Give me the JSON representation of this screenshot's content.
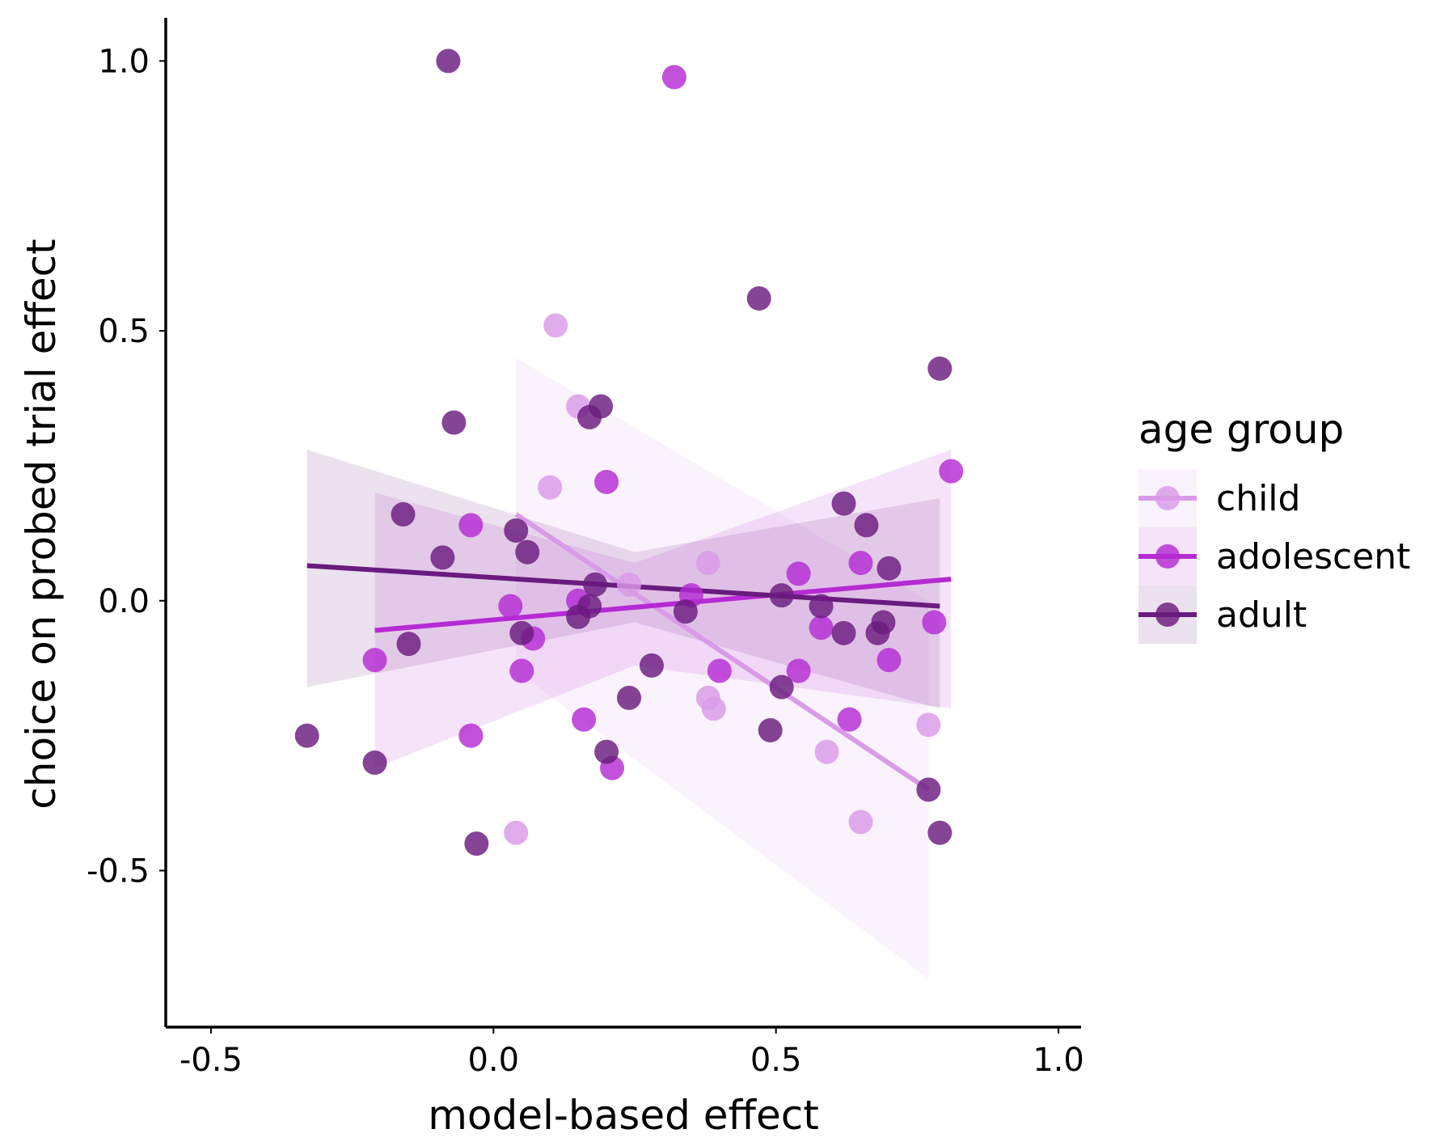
{
  "chart_data": {
    "type": "scatter",
    "xlabel": "model-based effect",
    "ylabel": "choice on probed trial effect",
    "xlim": [
      -0.58,
      1.04
    ],
    "ylim": [
      -0.79,
      1.08
    ],
    "xticks": [
      {
        "value": -0.5,
        "label": "-0.5"
      },
      {
        "value": 0.0,
        "label": "0.0"
      },
      {
        "value": 0.5,
        "label": "0.5"
      },
      {
        "value": 1.0,
        "label": "1.0"
      }
    ],
    "yticks": [
      {
        "value": -0.5,
        "label": "-0.5"
      },
      {
        "value": 0.0,
        "label": "0.0"
      },
      {
        "value": 0.5,
        "label": "0.5"
      },
      {
        "value": 1.0,
        "label": "1.0"
      }
    ],
    "grid": false,
    "legend": {
      "title": "age group",
      "position": "right"
    },
    "series": [
      {
        "name": "child",
        "color": "#D99AE8",
        "points": [
          {
            "x": 0.11,
            "y": 0.51
          },
          {
            "x": 0.15,
            "y": 0.36
          },
          {
            "x": 0.1,
            "y": 0.21
          },
          {
            "x": 0.24,
            "y": 0.03
          },
          {
            "x": 0.38,
            "y": 0.07
          },
          {
            "x": 0.38,
            "y": -0.18
          },
          {
            "x": 0.39,
            "y": -0.2
          },
          {
            "x": 0.59,
            "y": -0.28
          },
          {
            "x": 0.77,
            "y": -0.23
          },
          {
            "x": 0.65,
            "y": -0.41
          },
          {
            "x": 0.04,
            "y": -0.43
          }
        ],
        "fit": {
          "x": [
            0.04,
            0.77
          ],
          "y": [
            0.16,
            -0.35
          ]
        },
        "ci": {
          "x": [
            0.04,
            0.77
          ],
          "lower": [
            -0.13,
            -0.7
          ],
          "upper": [
            0.45,
            0.0
          ]
        }
      },
      {
        "name": "adolescent",
        "color": "#B52BD3",
        "points": [
          {
            "x": 0.32,
            "y": 0.97
          },
          {
            "x": 0.2,
            "y": 0.22
          },
          {
            "x": 0.81,
            "y": 0.24
          },
          {
            "x": -0.04,
            "y": 0.14
          },
          {
            "x": 0.65,
            "y": 0.07
          },
          {
            "x": 0.54,
            "y": 0.05
          },
          {
            "x": 0.15,
            "y": 0.0
          },
          {
            "x": 0.35,
            "y": 0.01
          },
          {
            "x": 0.03,
            "y": -0.01
          },
          {
            "x": 0.07,
            "y": -0.07
          },
          {
            "x": 0.58,
            "y": -0.05
          },
          {
            "x": 0.78,
            "y": -0.04
          },
          {
            "x": 0.05,
            "y": -0.13
          },
          {
            "x": 0.4,
            "y": -0.13
          },
          {
            "x": 0.54,
            "y": -0.13
          },
          {
            "x": 0.7,
            "y": -0.11
          },
          {
            "x": -0.21,
            "y": -0.11
          },
          {
            "x": -0.04,
            "y": -0.25
          },
          {
            "x": 0.16,
            "y": -0.22
          },
          {
            "x": 0.63,
            "y": -0.22
          },
          {
            "x": 0.21,
            "y": -0.31
          }
        ],
        "fit": {
          "x": [
            -0.21,
            0.81
          ],
          "y": [
            -0.055,
            0.04
          ]
        },
        "ci": {
          "x": [
            -0.21,
            0.25,
            0.81
          ],
          "lower": [
            -0.31,
            -0.12,
            -0.2
          ],
          "upper": [
            0.2,
            0.07,
            0.28
          ]
        }
      },
      {
        "name": "adult",
        "color": "#6A1B7E",
        "points": [
          {
            "x": -0.08,
            "y": 1.0
          },
          {
            "x": 0.47,
            "y": 0.56
          },
          {
            "x": 0.79,
            "y": 0.43
          },
          {
            "x": -0.07,
            "y": 0.33
          },
          {
            "x": 0.19,
            "y": 0.36
          },
          {
            "x": 0.17,
            "y": 0.34
          },
          {
            "x": -0.16,
            "y": 0.16
          },
          {
            "x": 0.04,
            "y": 0.13
          },
          {
            "x": 0.62,
            "y": 0.18
          },
          {
            "x": 0.66,
            "y": 0.14
          },
          {
            "x": -0.09,
            "y": 0.08
          },
          {
            "x": 0.06,
            "y": 0.09
          },
          {
            "x": 0.7,
            "y": 0.06
          },
          {
            "x": 0.18,
            "y": 0.03
          },
          {
            "x": 0.51,
            "y": 0.01
          },
          {
            "x": 0.17,
            "y": -0.01
          },
          {
            "x": 0.15,
            "y": -0.03
          },
          {
            "x": 0.34,
            "y": -0.02
          },
          {
            "x": 0.58,
            "y": -0.01
          },
          {
            "x": 0.62,
            "y": -0.06
          },
          {
            "x": 0.69,
            "y": -0.04
          },
          {
            "x": 0.68,
            "y": -0.06
          },
          {
            "x": 0.05,
            "y": -0.06
          },
          {
            "x": -0.15,
            "y": -0.08
          },
          {
            "x": 0.28,
            "y": -0.12
          },
          {
            "x": 0.51,
            "y": -0.16
          },
          {
            "x": 0.24,
            "y": -0.18
          },
          {
            "x": 0.49,
            "y": -0.24
          },
          {
            "x": 0.2,
            "y": -0.28
          },
          {
            "x": -0.33,
            "y": -0.25
          },
          {
            "x": -0.21,
            "y": -0.3
          },
          {
            "x": 0.77,
            "y": -0.35
          },
          {
            "x": 0.79,
            "y": -0.43
          },
          {
            "x": -0.03,
            "y": -0.45
          }
        ],
        "fit": {
          "x": [
            -0.33,
            0.79
          ],
          "y": [
            0.065,
            -0.01
          ]
        },
        "ci": {
          "x": [
            -0.33,
            0.25,
            0.79
          ],
          "lower": [
            -0.16,
            -0.04,
            -0.2
          ],
          "upper": [
            0.28,
            0.09,
            0.19
          ]
        }
      }
    ]
  }
}
